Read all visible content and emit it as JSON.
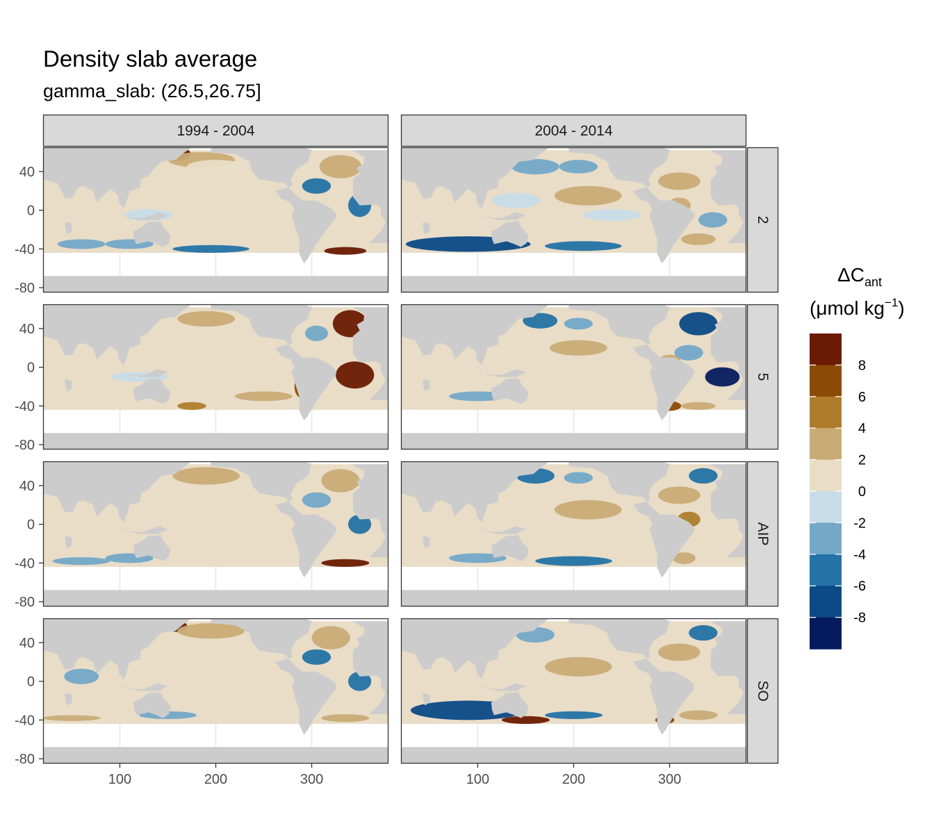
{
  "chart_data": {
    "type": "heatmap",
    "title": "Density slab average",
    "subtitle": "gamma_slab: (26.5,26.75]",
    "facet_columns": [
      "1994 - 2004",
      "2004 - 2014"
    ],
    "facet_rows": [
      "2",
      "5",
      "AIP",
      "SO"
    ],
    "x_axis": {
      "ticks": [
        100,
        200,
        300
      ],
      "range": [
        20,
        380
      ]
    },
    "y_axis": {
      "ticks": [
        40,
        0,
        -40,
        -80
      ],
      "range": [
        -85,
        65
      ]
    },
    "legend": {
      "title_main": "ΔC",
      "title_sub": "ant",
      "title_unit": "(μmol kg",
      "title_exp": "−1",
      "title_close": ")",
      "labels": [
        "8",
        "6",
        "4",
        "2",
        "0",
        "-2",
        "-4",
        "-6",
        "-8"
      ],
      "bin_colors": [
        "#6b1a03",
        "#8c4a07",
        "#ae7d2c",
        "#c9ab76",
        "#e9ddc8",
        "#c8dce9",
        "#73a8c8",
        "#2472a6",
        "#0c4987",
        "#061b5e"
      ]
    },
    "colors": {
      "land": "#cccccc",
      "ocean_outside": "#ffffff",
      "strip": "#d9d9d9"
    },
    "panels": [
      {
        "row": "2",
        "col": "1994 - 2004",
        "features": [
          {
            "lon": 160,
            "lat": 58,
            "rx": 14,
            "ry": 7,
            "value": 9
          },
          {
            "lon": 185,
            "lat": 52,
            "rx": 35,
            "ry": 8,
            "value": 4
          },
          {
            "lon": 200,
            "lat": 45,
            "rx": 30,
            "ry": 7,
            "value": 2
          },
          {
            "lon": 330,
            "lat": 45,
            "rx": 22,
            "ry": 12,
            "value": 3
          },
          {
            "lon": 305,
            "lat": 25,
            "rx": 15,
            "ry": 8,
            "value": -4
          },
          {
            "lon": 350,
            "lat": 5,
            "rx": 12,
            "ry": 12,
            "value": -5
          },
          {
            "lon": 335,
            "lat": -42,
            "rx": 22,
            "ry": 4,
            "value": 9
          },
          {
            "lon": 195,
            "lat": -40,
            "rx": 40,
            "ry": 4,
            "value": -4
          },
          {
            "lon": 110,
            "lat": -35,
            "rx": 25,
            "ry": 5,
            "value": -2
          },
          {
            "lon": 60,
            "lat": -35,
            "rx": 25,
            "ry": 5,
            "value": -3
          },
          {
            "lon": 130,
            "lat": -5,
            "rx": 25,
            "ry": 6,
            "value": -1
          },
          {
            "lon": 250,
            "lat": -10,
            "rx": 35,
            "ry": 5,
            "value": 1
          }
        ]
      },
      {
        "row": "2",
        "col": "2004 - 2014",
        "features": [
          {
            "lon": 160,
            "lat": 45,
            "rx": 25,
            "ry": 8,
            "value": -3
          },
          {
            "lon": 205,
            "lat": 45,
            "rx": 20,
            "ry": 7,
            "value": -2
          },
          {
            "lon": 215,
            "lat": 15,
            "rx": 35,
            "ry": 10,
            "value": 4
          },
          {
            "lon": 310,
            "lat": 30,
            "rx": 22,
            "ry": 9,
            "value": 3
          },
          {
            "lon": 310,
            "lat": 5,
            "rx": 12,
            "ry": 8,
            "value": 4
          },
          {
            "lon": 345,
            "lat": -10,
            "rx": 15,
            "ry": 8,
            "value": -2
          },
          {
            "lon": 90,
            "lat": -35,
            "rx": 65,
            "ry": 8,
            "value": -7
          },
          {
            "lon": 210,
            "lat": -37,
            "rx": 40,
            "ry": 5,
            "value": -5
          },
          {
            "lon": 330,
            "lat": -30,
            "rx": 18,
            "ry": 6,
            "value": 3
          },
          {
            "lon": 140,
            "lat": 10,
            "rx": 25,
            "ry": 8,
            "value": -1
          },
          {
            "lon": 240,
            "lat": -5,
            "rx": 30,
            "ry": 6,
            "value": -1
          }
        ]
      },
      {
        "row": "5",
        "col": "1994 - 2004",
        "features": [
          {
            "lon": 340,
            "lat": 45,
            "rx": 18,
            "ry": 14,
            "value": 9
          },
          {
            "lon": 345,
            "lat": -8,
            "rx": 20,
            "ry": 14,
            "value": 9
          },
          {
            "lon": 290,
            "lat": -20,
            "rx": 8,
            "ry": 12,
            "value": 8
          },
          {
            "lon": 190,
            "lat": 50,
            "rx": 30,
            "ry": 8,
            "value": 4
          },
          {
            "lon": 215,
            "lat": 20,
            "rx": 30,
            "ry": 6,
            "value": 2
          },
          {
            "lon": 175,
            "lat": -40,
            "rx": 15,
            "ry": 4,
            "value": 6
          },
          {
            "lon": 305,
            "lat": 35,
            "rx": 12,
            "ry": 8,
            "value": -3
          },
          {
            "lon": 120,
            "lat": -10,
            "rx": 30,
            "ry": 5,
            "value": -1
          },
          {
            "lon": 250,
            "lat": -30,
            "rx": 30,
            "ry": 5,
            "value": 3
          }
        ]
      },
      {
        "row": "5",
        "col": "2004 - 2014",
        "features": [
          {
            "lon": 165,
            "lat": 48,
            "rx": 18,
            "ry": 8,
            "value": -4
          },
          {
            "lon": 205,
            "lat": 45,
            "rx": 15,
            "ry": 6,
            "value": -3
          },
          {
            "lon": 330,
            "lat": 45,
            "rx": 20,
            "ry": 12,
            "value": -6
          },
          {
            "lon": 355,
            "lat": -10,
            "rx": 18,
            "ry": 10,
            "value": -9
          },
          {
            "lon": 320,
            "lat": 15,
            "rx": 15,
            "ry": 8,
            "value": -3
          },
          {
            "lon": 205,
            "lat": 20,
            "rx": 30,
            "ry": 8,
            "value": 3
          },
          {
            "lon": 300,
            "lat": 5,
            "rx": 12,
            "ry": 8,
            "value": 4
          },
          {
            "lon": 300,
            "lat": -40,
            "rx": 12,
            "ry": 5,
            "value": 8
          },
          {
            "lon": 330,
            "lat": -40,
            "rx": 18,
            "ry": 4,
            "value": 4
          },
          {
            "lon": 100,
            "lat": -30,
            "rx": 30,
            "ry": 5,
            "value": -3
          },
          {
            "lon": 230,
            "lat": -20,
            "rx": 40,
            "ry": 6,
            "value": 2
          }
        ]
      },
      {
        "row": "AIP",
        "col": "1994 - 2004",
        "features": [
          {
            "lon": 190,
            "lat": 50,
            "rx": 35,
            "ry": 9,
            "value": 3
          },
          {
            "lon": 330,
            "lat": 45,
            "rx": 20,
            "ry": 12,
            "value": 3
          },
          {
            "lon": 305,
            "lat": 25,
            "rx": 15,
            "ry": 8,
            "value": -3
          },
          {
            "lon": 350,
            "lat": 0,
            "rx": 12,
            "ry": 10,
            "value": -4
          },
          {
            "lon": 335,
            "lat": -40,
            "rx": 25,
            "ry": 4,
            "value": 9
          },
          {
            "lon": 190,
            "lat": 25,
            "rx": 35,
            "ry": 5,
            "value": 2
          },
          {
            "lon": 200,
            "lat": -5,
            "rx": 40,
            "ry": 4,
            "value": 2
          },
          {
            "lon": 110,
            "lat": -35,
            "rx": 25,
            "ry": 5,
            "value": -2
          },
          {
            "lon": 60,
            "lat": -38,
            "rx": 30,
            "ry": 4,
            "value": -2
          }
        ]
      },
      {
        "row": "AIP",
        "col": "2004 - 2014",
        "features": [
          {
            "lon": 160,
            "lat": 50,
            "rx": 20,
            "ry": 8,
            "value": -4
          },
          {
            "lon": 205,
            "lat": 48,
            "rx": 15,
            "ry": 6,
            "value": -3
          },
          {
            "lon": 215,
            "lat": 15,
            "rx": 35,
            "ry": 10,
            "value": 4
          },
          {
            "lon": 310,
            "lat": 30,
            "rx": 22,
            "ry": 9,
            "value": 4
          },
          {
            "lon": 320,
            "lat": 5,
            "rx": 12,
            "ry": 8,
            "value": 5
          },
          {
            "lon": 335,
            "lat": 50,
            "rx": 15,
            "ry": 8,
            "value": -4
          },
          {
            "lon": 200,
            "lat": -38,
            "rx": 40,
            "ry": 5,
            "value": -4
          },
          {
            "lon": 100,
            "lat": -35,
            "rx": 30,
            "ry": 5,
            "value": -3
          },
          {
            "lon": 315,
            "lat": -35,
            "rx": 12,
            "ry": 6,
            "value": 4
          }
        ]
      },
      {
        "row": "SO",
        "col": "1994 - 2004",
        "features": [
          {
            "lon": 160,
            "lat": 57,
            "rx": 10,
            "ry": 6,
            "value": 9
          },
          {
            "lon": 195,
            "lat": 52,
            "rx": 35,
            "ry": 8,
            "value": 4
          },
          {
            "lon": 320,
            "lat": 45,
            "rx": 20,
            "ry": 12,
            "value": 3
          },
          {
            "lon": 305,
            "lat": 25,
            "rx": 15,
            "ry": 8,
            "value": -4
          },
          {
            "lon": 350,
            "lat": 0,
            "rx": 12,
            "ry": 10,
            "value": -5
          },
          {
            "lon": 50,
            "lat": -38,
            "rx": 30,
            "ry": 3,
            "value": 4
          },
          {
            "lon": 335,
            "lat": -38,
            "rx": 25,
            "ry": 4,
            "value": 3
          },
          {
            "lon": 150,
            "lat": -35,
            "rx": 30,
            "ry": 4,
            "value": -2
          },
          {
            "lon": 60,
            "lat": 5,
            "rx": 18,
            "ry": 8,
            "value": -2
          }
        ]
      },
      {
        "row": "SO",
        "col": "2004 - 2014",
        "features": [
          {
            "lon": 90,
            "lat": -30,
            "rx": 60,
            "ry": 10,
            "value": -7
          },
          {
            "lon": 150,
            "lat": -40,
            "rx": 25,
            "ry": 4,
            "value": 9
          },
          {
            "lon": 200,
            "lat": -35,
            "rx": 30,
            "ry": 4,
            "value": -5
          },
          {
            "lon": 160,
            "lat": 48,
            "rx": 20,
            "ry": 8,
            "value": -3
          },
          {
            "lon": 205,
            "lat": 15,
            "rx": 35,
            "ry": 10,
            "value": 4
          },
          {
            "lon": 310,
            "lat": 30,
            "rx": 22,
            "ry": 9,
            "value": 4
          },
          {
            "lon": 330,
            "lat": -35,
            "rx": 20,
            "ry": 5,
            "value": 4
          },
          {
            "lon": 295,
            "lat": -40,
            "rx": 10,
            "ry": 4,
            "value": 8
          },
          {
            "lon": 335,
            "lat": 50,
            "rx": 15,
            "ry": 8,
            "value": -4
          }
        ]
      }
    ]
  }
}
